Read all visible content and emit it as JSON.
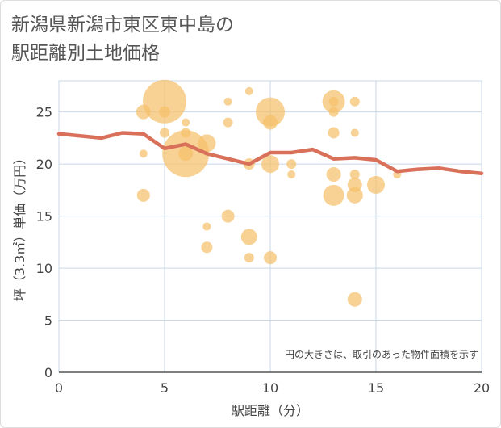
{
  "title_line1": "新潟県新潟市東区東中島の",
  "title_line2": "駅距離別土地価格",
  "chart_data": {
    "type": "scatter",
    "xlabel": "駅距離（分）",
    "ylabel": "坪（3.3㎡）単価（万円）",
    "xlim": [
      0,
      20
    ],
    "ylim": [
      0,
      28
    ],
    "xticks": [
      0,
      5,
      10,
      15,
      20
    ],
    "yticks": [
      0,
      5,
      10,
      15,
      20,
      25
    ],
    "grid": true,
    "note": "円の大きさは、取引のあった物件面積を示す",
    "colors": {
      "bubble": "#f5c06b",
      "line": "#d9705a",
      "grid": "#c9d7e6"
    },
    "bubbles": [
      {
        "x": 4,
        "y": 25,
        "s": 9
      },
      {
        "x": 4,
        "y": 21,
        "s": 5
      },
      {
        "x": 4,
        "y": 17,
        "s": 8
      },
      {
        "x": 5,
        "y": 26,
        "s": 27
      },
      {
        "x": 5,
        "y": 25,
        "s": 7
      },
      {
        "x": 5,
        "y": 23,
        "s": 6
      },
      {
        "x": 6,
        "y": 24,
        "s": 5
      },
      {
        "x": 6,
        "y": 23,
        "s": 6
      },
      {
        "x": 6,
        "y": 21,
        "s": 29
      },
      {
        "x": 6,
        "y": 21,
        "s": 9
      },
      {
        "x": 7,
        "y": 22,
        "s": 11
      },
      {
        "x": 7,
        "y": 14,
        "s": 5
      },
      {
        "x": 7,
        "y": 12,
        "s": 7
      },
      {
        "x": 8,
        "y": 26,
        "s": 5
      },
      {
        "x": 8,
        "y": 24,
        "s": 6
      },
      {
        "x": 8,
        "y": 15,
        "s": 8
      },
      {
        "x": 9,
        "y": 27,
        "s": 5
      },
      {
        "x": 9,
        "y": 20,
        "s": 7
      },
      {
        "x": 9,
        "y": 13,
        "s": 10
      },
      {
        "x": 9,
        "y": 11,
        "s": 6
      },
      {
        "x": 10,
        "y": 25,
        "s": 18
      },
      {
        "x": 10,
        "y": 24,
        "s": 9
      },
      {
        "x": 10,
        "y": 20,
        "s": 11
      },
      {
        "x": 10,
        "y": 11,
        "s": 8
      },
      {
        "x": 11,
        "y": 20,
        "s": 6
      },
      {
        "x": 11,
        "y": 19,
        "s": 5
      },
      {
        "x": 13,
        "y": 26,
        "s": 14
      },
      {
        "x": 13,
        "y": 26,
        "s": 6
      },
      {
        "x": 13,
        "y": 25,
        "s": 6
      },
      {
        "x": 13,
        "y": 23,
        "s": 7
      },
      {
        "x": 13,
        "y": 19,
        "s": 9
      },
      {
        "x": 13,
        "y": 17,
        "s": 13
      },
      {
        "x": 14,
        "y": 26,
        "s": 6
      },
      {
        "x": 14,
        "y": 23,
        "s": 5
      },
      {
        "x": 14,
        "y": 19,
        "s": 6
      },
      {
        "x": 14,
        "y": 18,
        "s": 9
      },
      {
        "x": 14,
        "y": 17,
        "s": 10
      },
      {
        "x": 14,
        "y": 7,
        "s": 9
      },
      {
        "x": 15,
        "y": 18,
        "s": 11
      },
      {
        "x": 16,
        "y": 19,
        "s": 5
      }
    ],
    "line": {
      "x": [
        0,
        1,
        2,
        3,
        4,
        5,
        6,
        7,
        8,
        9,
        10,
        11,
        12,
        13,
        14,
        15,
        16,
        17,
        18,
        19,
        20
      ],
      "y": [
        22.9,
        22.7,
        22.5,
        23.0,
        22.9,
        21.5,
        21.9,
        21.0,
        20.5,
        20.0,
        21.1,
        21.1,
        21.4,
        20.5,
        20.6,
        20.4,
        19.3,
        19.5,
        19.6,
        19.3,
        19.1
      ]
    }
  }
}
